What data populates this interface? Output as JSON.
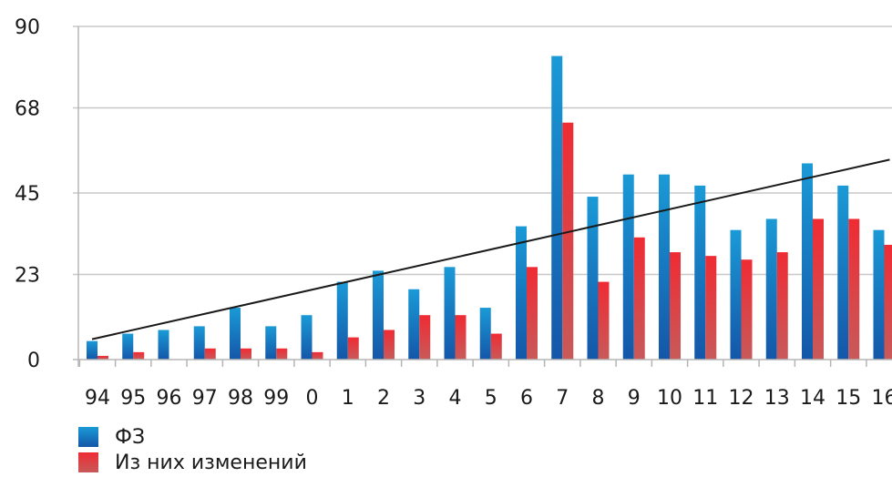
{
  "chart_data": {
    "type": "bar",
    "categories": [
      "94",
      "95",
      "96",
      "97",
      "98",
      "99",
      "0",
      "1",
      "2",
      "3",
      "4",
      "5",
      "6",
      "7",
      "8",
      "9",
      "10",
      "11",
      "12",
      "13",
      "14",
      "15",
      "16"
    ],
    "series": [
      {
        "name": "ФЗ",
        "color": "#1a78c2",
        "values": [
          5,
          7,
          8,
          9,
          14,
          9,
          12,
          21,
          24,
          19,
          25,
          14,
          36,
          82,
          44,
          50,
          50,
          47,
          35,
          38,
          53,
          47,
          35
        ]
      },
      {
        "name": "Из них изменений",
        "color": "#e8353b",
        "values": [
          1,
          2,
          0,
          3,
          3,
          3,
          2,
          6,
          8,
          12,
          12,
          7,
          25,
          64,
          21,
          33,
          29,
          28,
          27,
          29,
          38,
          38,
          31
        ]
      }
    ],
    "trendline": {
      "start": 5.5,
      "end": 54
    },
    "y_ticks": [
      "0",
      "23",
      "45",
      "68",
      "90"
    ],
    "ylim": [
      0,
      90
    ],
    "grid": true,
    "legend_position": "bottom-left"
  }
}
